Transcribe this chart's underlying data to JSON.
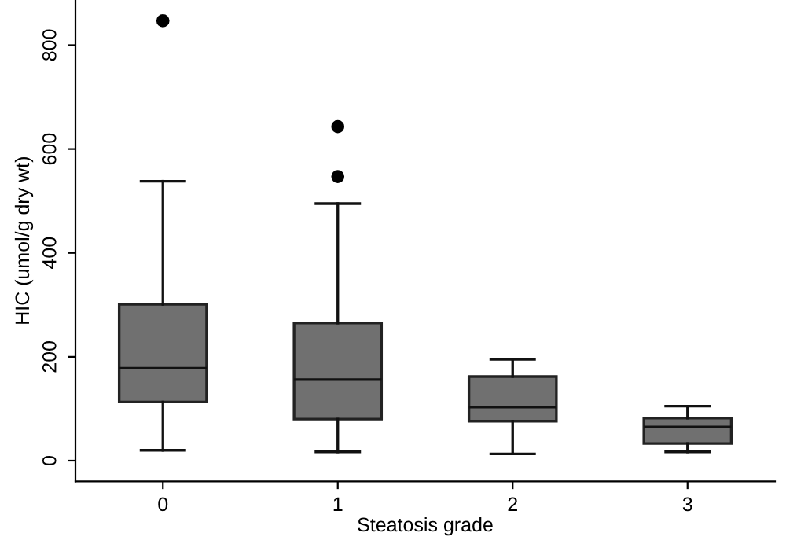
{
  "chart_data": {
    "type": "box",
    "xlabel": "Steatosis grade",
    "ylabel": "HIC (umol/g dry wt)",
    "categories": [
      "0",
      "1",
      "2",
      "3"
    ],
    "boxes": [
      {
        "low": 20,
        "q1": 113,
        "median": 178,
        "q3": 301,
        "high": 538,
        "outliers": [
          847
        ]
      },
      {
        "low": 17,
        "q1": 80,
        "median": 156,
        "q3": 265,
        "high": 495,
        "outliers": [
          547,
          643
        ]
      },
      {
        "low": 13,
        "q1": 76,
        "median": 103,
        "q3": 162,
        "high": 195
      },
      {
        "low": 17,
        "q1": 33,
        "median": 65,
        "q3": 82,
        "high": 105
      }
    ],
    "color": "#707070",
    "ylim": [
      -40,
      887
    ],
    "yticks": [
      0,
      200,
      400,
      600,
      800
    ],
    "grid": false
  }
}
